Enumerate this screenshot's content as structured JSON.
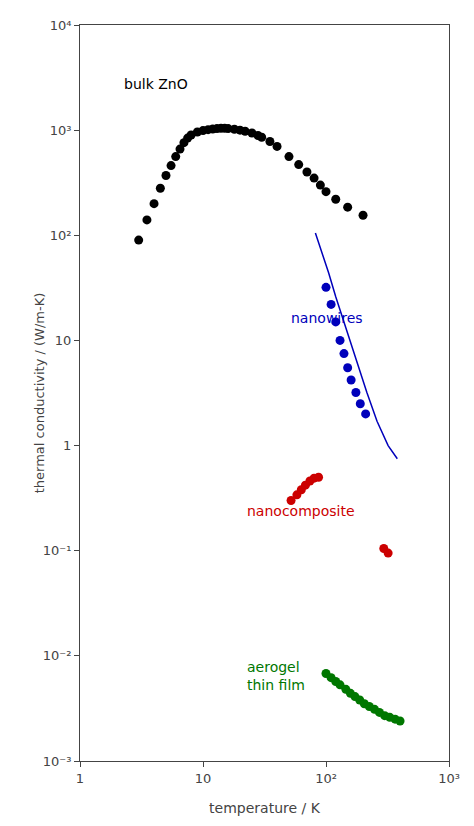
{
  "chart_data": {
    "type": "scatter",
    "xlabel": "temperature / K",
    "ylabel": "thermal conductivity / (W/m-K)",
    "log": true,
    "grid": false,
    "xlim": [
      1,
      1000
    ],
    "ylim": [
      0.001,
      10000
    ],
    "xticks": [
      1,
      10,
      {
        "value": 100,
        "label": "10²"
      },
      {
        "value": 1000,
        "label": "10³"
      }
    ],
    "yticks": [
      {
        "value": 0.001,
        "label": "10⁻³"
      },
      {
        "value": 0.01,
        "label": "10⁻²"
      },
      {
        "value": 0.1,
        "label": "10⁻¹"
      },
      1,
      10,
      {
        "value": 100,
        "label": "10²"
      },
      {
        "value": 1000,
        "label": "10³"
      },
      {
        "value": 10000,
        "label": "10⁴"
      }
    ],
    "series": [
      {
        "type": "scatter",
        "marker": "circle",
        "color": "#000000",
        "x": [
          3.0,
          3.5,
          4.0,
          4.5,
          5.0,
          5.5,
          6.0,
          6.5,
          7.0,
          7.5,
          8.0,
          9.0,
          10.0,
          11.0,
          12.0,
          13.0,
          14.0,
          15.0,
          16.0,
          18.0,
          20.0,
          22.0,
          25.0,
          28.0,
          30.0,
          35.0,
          40.0,
          50.0,
          60.0,
          70.0,
          80.0,
          90.0,
          100.0,
          120.0,
          150.0,
          200.0
        ],
        "values": [
          90,
          140,
          200,
          280,
          370,
          460,
          560,
          660,
          760,
          840,
          900,
          960,
          990,
          1010,
          1025,
          1035,
          1040,
          1040,
          1035,
          1020,
          1000,
          975,
          940,
          890,
          855,
          780,
          700,
          560,
          470,
          400,
          350,
          300,
          260,
          220,
          185,
          155
        ]
      },
      {
        "type": "line",
        "line_style": "solid",
        "color": "#0000bb",
        "x": [
          82,
          88,
          95,
          105,
          120,
          145,
          175,
          215,
          260,
          320,
          380
        ],
        "values": [
          105,
          82,
          62,
          44,
          26,
          13,
          6.5,
          3.2,
          1.7,
          1.0,
          0.75
        ]
      },
      {
        "type": "scatter",
        "marker": "circle",
        "color": "#0000bb",
        "x": [
          100,
          110,
          120,
          130,
          140,
          150,
          160,
          175,
          190,
          210
        ],
        "values": [
          32,
          22,
          15,
          10,
          7.5,
          5.5,
          4.2,
          3.2,
          2.5,
          2.0
        ]
      },
      {
        "type": "scatter",
        "marker": "circle",
        "color": "#cc0000",
        "x": [
          52,
          58,
          63,
          68,
          74,
          80,
          87
        ],
        "values": [
          0.3,
          0.34,
          0.38,
          0.42,
          0.46,
          0.49,
          0.5
        ]
      },
      {
        "type": "scatter",
        "marker": "circle",
        "color": "#cc0000",
        "x": [
          295,
          320
        ],
        "values": [
          0.105,
          0.095
        ]
      },
      {
        "type": "scatter",
        "marker": "circle",
        "color": "#007700",
        "x": [
          100,
          110,
          120,
          130,
          145,
          158,
          172,
          188,
          205,
          225,
          248,
          272,
          300,
          330,
          365,
          400
        ],
        "values": [
          0.0068,
          0.0062,
          0.0057,
          0.0053,
          0.0048,
          0.0044,
          0.0041,
          0.0038,
          0.0035,
          0.0033,
          0.0031,
          0.0029,
          0.0027,
          0.0026,
          0.0025,
          0.0024
        ]
      }
    ],
    "annotations": [
      {
        "text": "bulk ZnO",
        "x": 2.2,
        "y": 2200,
        "color": "#000000"
      },
      {
        "text": "nanowires",
        "x": 50,
        "y": 13,
        "color": "#0000bb"
      },
      {
        "text": "nanocomposite",
        "x": 22,
        "y": 0.19,
        "color": "#cc0000"
      },
      {
        "text": "aerogel\nthin film",
        "x": 22,
        "y": 0.0042,
        "color": "#007700"
      }
    ]
  }
}
